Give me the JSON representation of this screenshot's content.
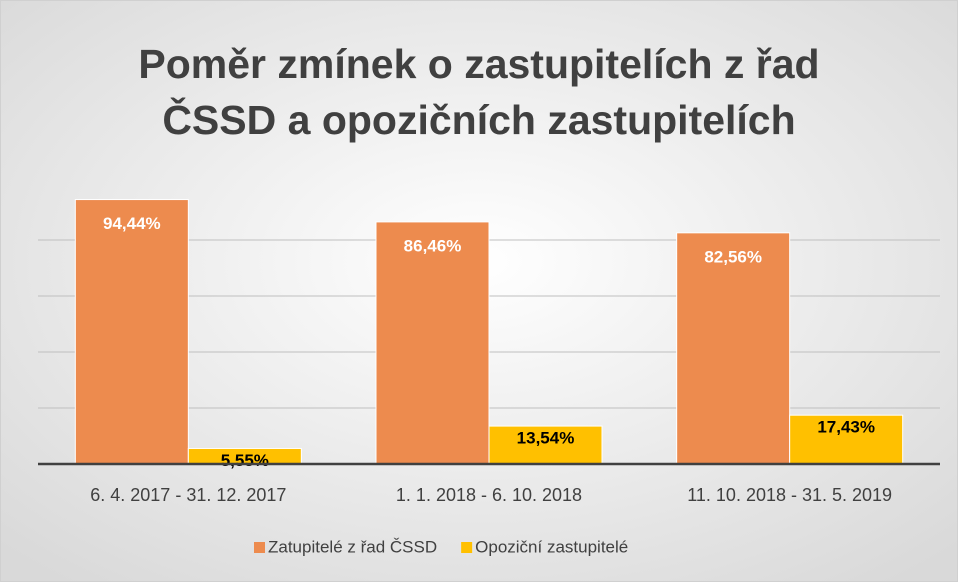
{
  "chart_data": {
    "type": "bar",
    "title": "Poměr zmínek o zastupitelích z řad ČSSD a opozičních zastupitelích",
    "categories": [
      "6. 4. 2017 - 31. 12. 2017",
      "1. 1. 2018 - 6. 10. 2018",
      "11. 10. 2018 - 31. 5. 2019"
    ],
    "series": [
      {
        "name": "Zatupitelé z řad ČSSD",
        "color": "#ED8B4E",
        "values": [
          94.44,
          86.46,
          82.56
        ],
        "value_labels": [
          "94,44%",
          "86,46%",
          "82,56%"
        ]
      },
      {
        "name": "Opoziční zastupitelé",
        "color": "#FFC000",
        "values": [
          5.55,
          13.54,
          17.43
        ],
        "value_labels": [
          "5,55%",
          "13,54%",
          "17,43%"
        ]
      }
    ],
    "ylim": [
      0,
      100
    ],
    "yticks": [
      0,
      20,
      40,
      60,
      80
    ],
    "grid": true,
    "legend": "bottom"
  }
}
